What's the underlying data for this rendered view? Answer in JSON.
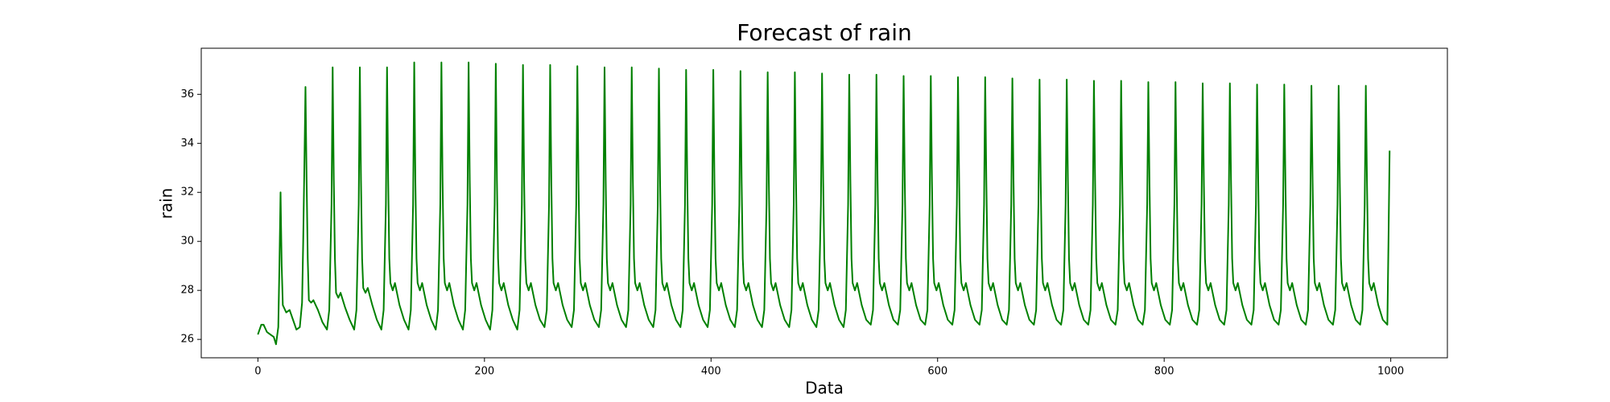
{
  "chart_data": {
    "type": "line",
    "title": "Forecast of rain",
    "xlabel": "Data",
    "ylabel": "rain",
    "color": "#008000",
    "x": [
      0,
      3,
      5,
      8,
      11,
      14,
      16,
      18,
      19,
      20,
      21,
      22,
      25,
      28,
      31,
      34,
      37,
      39,
      40,
      41,
      42,
      43,
      44,
      45,
      47,
      49,
      53,
      57,
      61,
      63,
      65,
      66,
      67,
      68,
      69,
      71,
      73,
      77,
      81,
      85,
      87,
      89,
      90,
      91,
      92,
      93,
      95,
      97,
      101,
      105,
      109,
      111,
      113,
      114,
      115,
      116,
      117,
      119,
      121,
      125,
      129,
      133,
      135,
      137,
      138,
      139,
      140,
      141,
      143,
      145,
      149,
      153,
      157,
      159,
      161,
      162,
      163,
      164,
      165,
      167,
      169,
      173,
      177,
      181,
      183,
      185,
      186,
      187,
      188,
      189,
      191,
      193,
      197,
      201,
      205,
      207,
      209,
      210,
      211,
      212,
      213,
      215,
      217,
      221,
      225,
      229,
      231,
      233,
      234,
      235,
      236,
      237,
      239,
      241,
      245,
      249,
      253,
      255,
      257,
      258,
      259,
      260,
      261,
      263,
      265,
      269,
      273,
      277,
      279,
      281,
      282,
      283,
      284,
      285,
      287,
      289,
      293,
      297,
      301,
      303,
      305,
      306,
      307,
      308,
      309,
      311,
      313,
      317,
      321,
      325,
      327,
      329,
      330,
      331,
      332,
      333,
      335,
      337,
      341,
      345,
      349,
      351,
      353,
      354,
      355,
      356,
      357,
      359,
      361,
      365,
      369,
      373,
      375,
      377,
      378,
      379,
      380,
      381,
      383,
      385,
      389,
      393,
      397,
      399,
      401,
      402,
      403,
      404,
      405,
      407,
      409,
      413,
      417,
      421,
      423,
      425,
      426,
      427,
      428,
      429,
      431,
      433,
      437,
      441,
      445,
      447,
      449,
      450,
      451,
      452,
      453,
      455,
      457,
      461,
      465,
      469,
      471,
      473,
      474,
      475,
      476,
      477,
      479,
      481,
      485,
      489,
      493,
      495,
      497,
      498,
      499,
      500,
      501,
      503,
      505,
      509,
      513,
      517,
      519,
      521,
      522,
      523,
      524,
      525,
      527,
      529,
      533,
      537,
      541,
      543,
      545,
      546,
      547,
      548,
      549,
      551,
      553,
      557,
      561,
      565,
      567,
      569,
      570,
      571,
      572,
      573,
      575,
      577,
      581,
      585,
      589,
      591,
      593,
      594,
      595,
      596,
      597,
      599,
      601,
      605,
      609,
      613,
      615,
      617,
      618,
      619,
      620,
      621,
      623,
      625,
      629,
      633,
      637,
      639,
      641,
      642,
      643,
      644,
      645,
      647,
      649,
      653,
      657,
      661,
      663,
      665,
      666,
      667,
      668,
      669,
      671,
      673,
      677,
      681,
      685,
      687,
      689,
      690,
      691,
      692,
      693,
      695,
      697,
      701,
      705,
      709,
      711,
      713,
      714,
      715,
      716,
      717,
      719,
      721,
      725,
      729,
      733,
      735,
      737,
      738,
      739,
      740,
      741,
      743,
      745,
      749,
      753,
      757,
      759,
      761,
      762,
      763,
      764,
      765,
      767,
      769,
      773,
      777,
      781,
      783,
      785,
      786,
      787,
      788,
      789,
      791,
      793,
      797,
      801,
      805,
      807,
      809,
      810,
      811,
      812,
      813,
      815,
      817,
      821,
      825,
      829,
      831,
      833,
      834,
      835,
      836,
      837,
      839,
      841,
      845,
      849,
      853,
      855,
      857,
      858,
      859,
      860,
      861,
      863,
      865,
      869,
      873,
      877,
      879,
      881,
      882,
      883,
      884,
      885,
      887,
      889,
      893,
      897,
      901,
      903,
      905,
      906,
      907,
      908,
      909,
      911,
      913,
      917,
      921,
      925,
      927,
      929,
      930,
      931,
      932,
      933,
      935,
      937,
      941,
      945,
      949,
      951,
      953,
      954,
      955,
      956,
      957,
      959,
      961,
      965,
      969,
      973,
      975,
      977,
      978,
      979,
      980,
      981,
      983,
      985,
      989,
      993,
      997,
      998,
      999
    ],
    "values": [
      26.2,
      26.6,
      26.6,
      26.3,
      26.2,
      26.1,
      25.8,
      26.5,
      29,
      32,
      29,
      27.4,
      27.1,
      27.2,
      26.8,
      26.4,
      26.5,
      27.5,
      30,
      33,
      36.3,
      32.5,
      29.3,
      27.6,
      27.5,
      27.6,
      27.2,
      26.7,
      26.4,
      27.2,
      31.5,
      37.1,
      32.5,
      29.3,
      27.9,
      27.7,
      27.9,
      27.3,
      26.8,
      26.4,
      27.2,
      31.5,
      37.1,
      32.5,
      29.3,
      28.1,
      27.9,
      28.1,
      27.4,
      26.8,
      26.4,
      27.2,
      31.5,
      37.1,
      32.5,
      29.3,
      28.3,
      28.0,
      28.3,
      27.4,
      26.8,
      26.4,
      27.2,
      31.5,
      37.3,
      32.5,
      29.3,
      28.3,
      28.0,
      28.3,
      27.4,
      26.8,
      26.4,
      27.2,
      31.5,
      37.3,
      32.5,
      29.3,
      28.3,
      28.0,
      28.3,
      27.4,
      26.8,
      26.4,
      27.2,
      31.5,
      37.3,
      32.5,
      29.3,
      28.3,
      28.0,
      28.3,
      27.4,
      26.8,
      26.4,
      27.2,
      31.5,
      37.25,
      32.5,
      29.3,
      28.3,
      28.0,
      28.3,
      27.4,
      26.8,
      26.4,
      27.2,
      31.5,
      37.2,
      32.5,
      29.3,
      28.3,
      28.0,
      28.3,
      27.4,
      26.8,
      26.5,
      27.2,
      31.5,
      37.2,
      32.5,
      29.3,
      28.3,
      28.0,
      28.3,
      27.4,
      26.8,
      26.5,
      27.2,
      31.5,
      37.15,
      32.5,
      29.3,
      28.3,
      28.0,
      28.3,
      27.4,
      26.8,
      26.5,
      27.2,
      31.5,
      37.1,
      32.5,
      29.3,
      28.3,
      28.0,
      28.3,
      27.4,
      26.8,
      26.5,
      27.2,
      31.5,
      37.1,
      32.5,
      29.3,
      28.3,
      28.0,
      28.3,
      27.4,
      26.8,
      26.5,
      27.2,
      31.5,
      37.05,
      32.5,
      29.3,
      28.3,
      28.0,
      28.3,
      27.4,
      26.8,
      26.5,
      27.2,
      31.5,
      37.0,
      32.5,
      29.3,
      28.3,
      28.0,
      28.3,
      27.4,
      26.8,
      26.5,
      27.2,
      31.5,
      37.0,
      32.5,
      29.3,
      28.3,
      28.0,
      28.3,
      27.4,
      26.8,
      26.5,
      27.2,
      31.5,
      36.95,
      32.5,
      29.3,
      28.3,
      28.0,
      28.3,
      27.4,
      26.8,
      26.5,
      27.2,
      31.5,
      36.9,
      32.5,
      29.3,
      28.3,
      28.0,
      28.3,
      27.4,
      26.8,
      26.5,
      27.2,
      31.5,
      36.9,
      32.5,
      29.3,
      28.3,
      28.0,
      28.3,
      27.4,
      26.8,
      26.5,
      27.2,
      31.5,
      36.85,
      32.5,
      29.3,
      28.3,
      28.0,
      28.3,
      27.4,
      26.8,
      26.5,
      27.2,
      31.5,
      36.8,
      32.5,
      29.3,
      28.3,
      28.0,
      28.3,
      27.4,
      26.8,
      26.6,
      27.2,
      31.5,
      36.8,
      32.5,
      29.3,
      28.3,
      28.0,
      28.3,
      27.4,
      26.8,
      26.6,
      27.2,
      31.5,
      36.75,
      32.5,
      29.3,
      28.3,
      28.0,
      28.3,
      27.4,
      26.8,
      26.6,
      27.2,
      31.5,
      36.75,
      32.5,
      29.3,
      28.3,
      28.0,
      28.3,
      27.4,
      26.8,
      26.6,
      27.2,
      31.5,
      36.7,
      32.5,
      29.3,
      28.3,
      28.0,
      28.3,
      27.4,
      26.8,
      26.6,
      27.2,
      31.5,
      36.7,
      32.5,
      29.3,
      28.3,
      28.0,
      28.3,
      27.4,
      26.8,
      26.6,
      27.2,
      31.5,
      36.65,
      32.5,
      29.3,
      28.3,
      28.0,
      28.3,
      27.4,
      26.8,
      26.6,
      27.2,
      31.5,
      36.6,
      32.5,
      29.3,
      28.3,
      28.0,
      28.3,
      27.4,
      26.8,
      26.6,
      27.2,
      31.5,
      36.6,
      32.5,
      29.3,
      28.3,
      28.0,
      28.3,
      27.4,
      26.8,
      26.6,
      27.2,
      31.5,
      36.55,
      32.5,
      29.3,
      28.3,
      28.0,
      28.3,
      27.4,
      26.8,
      26.6,
      27.2,
      31.5,
      36.55,
      32.5,
      29.3,
      28.3,
      28.0,
      28.3,
      27.4,
      26.8,
      26.6,
      27.2,
      31.5,
      36.5,
      32.5,
      29.3,
      28.3,
      28.0,
      28.3,
      27.4,
      26.8,
      26.6,
      27.2,
      31.5,
      36.5,
      32.5,
      29.3,
      28.3,
      28.0,
      28.3,
      27.4,
      26.8,
      26.6,
      27.2,
      31.5,
      36.45,
      32.5,
      29.3,
      28.3,
      28.0,
      28.3,
      27.4,
      26.8,
      26.6,
      27.2,
      31.5,
      36.45,
      32.5,
      29.3,
      28.3,
      28.0,
      28.3,
      27.4,
      26.8,
      26.6,
      27.2,
      31.5,
      36.4,
      32.5,
      29.3,
      28.3,
      28.0,
      28.3,
      27.4,
      26.8,
      26.6,
      27.2,
      31.5,
      36.4,
      32.5,
      29.3,
      28.3,
      28.0,
      28.3,
      27.4,
      26.8,
      26.6,
      27.2,
      31.5,
      36.35,
      32.5,
      29.3,
      28.3,
      28.0,
      28.3,
      27.4,
      26.8,
      26.6,
      27.2,
      31.5,
      36.35,
      32.5,
      29.3,
      28.3,
      28.0,
      28.3,
      27.4,
      26.8,
      26.6,
      27.2,
      31.5,
      36.35,
      32.5,
      29.3,
      28.3,
      28.0,
      28.3,
      27.4,
      26.8,
      26.6,
      30,
      33.7
    ],
    "xlim": [
      -50,
      1050
    ],
    "xticks": [
      0,
      200,
      400,
      600,
      800,
      1000
    ],
    "ylim": [
      25.25,
      37.88
    ],
    "yticks": [
      26,
      28,
      30,
      32,
      34,
      36
    ],
    "grid": false
  }
}
